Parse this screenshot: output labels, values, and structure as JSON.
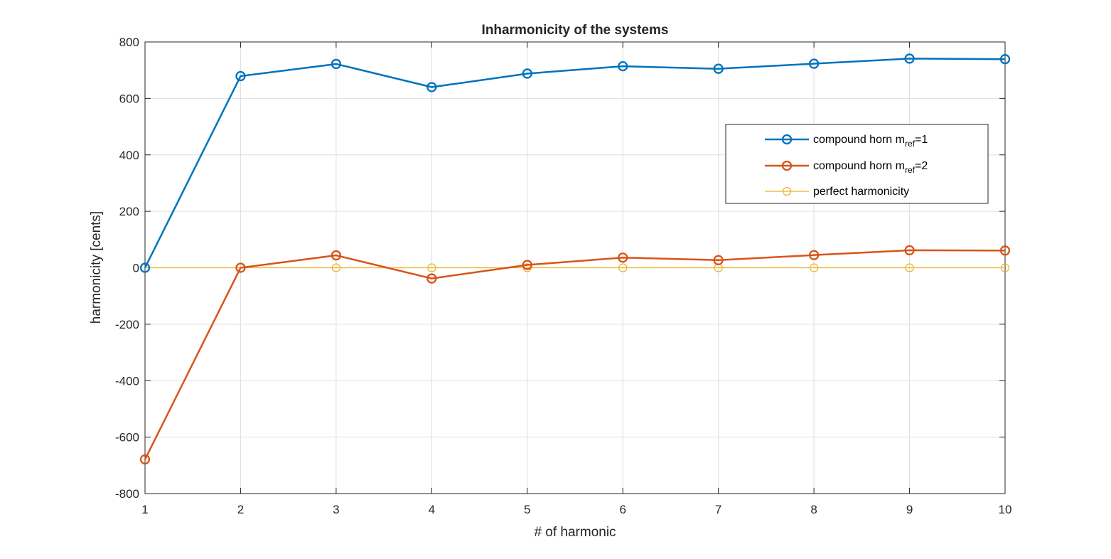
{
  "chart_data": {
    "type": "line",
    "title": "Inharmonicity of the systems",
    "xlabel": "# of harmonic",
    "ylabel": "harmonicity [cents]",
    "xlim": [
      1,
      10
    ],
    "ylim": [
      -800,
      800
    ],
    "x_ticks": [
      1,
      2,
      3,
      4,
      5,
      6,
      7,
      8,
      9,
      10
    ],
    "y_ticks": [
      -800,
      -600,
      -400,
      -200,
      0,
      200,
      400,
      600,
      800
    ],
    "grid": true,
    "legend_position": "top-right",
    "x": [
      1,
      2,
      3,
      4,
      5,
      6,
      7,
      8,
      9,
      10
    ],
    "series": [
      {
        "name": "compound horn m_ref=1",
        "label_main": "compound horn m",
        "label_sub": "ref",
        "label_tail": "=1",
        "color": "#0072BD",
        "values": [
          0,
          679,
          722,
          640,
          688,
          714,
          705,
          723,
          741,
          739
        ]
      },
      {
        "name": "compound horn m_ref=2",
        "label_main": "compound horn m",
        "label_sub": "ref",
        "label_tail": "=2",
        "color": "#D95319",
        "values": [
          -679,
          0,
          44,
          -38,
          10,
          36,
          27,
          45,
          62,
          61
        ]
      },
      {
        "name": "perfect harmonicity",
        "label_main": "perfect harmonicity",
        "label_sub": "",
        "label_tail": "",
        "color": "#EDB120",
        "values": [
          0,
          0,
          0,
          0,
          0,
          0,
          0,
          0,
          0,
          0
        ]
      }
    ]
  }
}
